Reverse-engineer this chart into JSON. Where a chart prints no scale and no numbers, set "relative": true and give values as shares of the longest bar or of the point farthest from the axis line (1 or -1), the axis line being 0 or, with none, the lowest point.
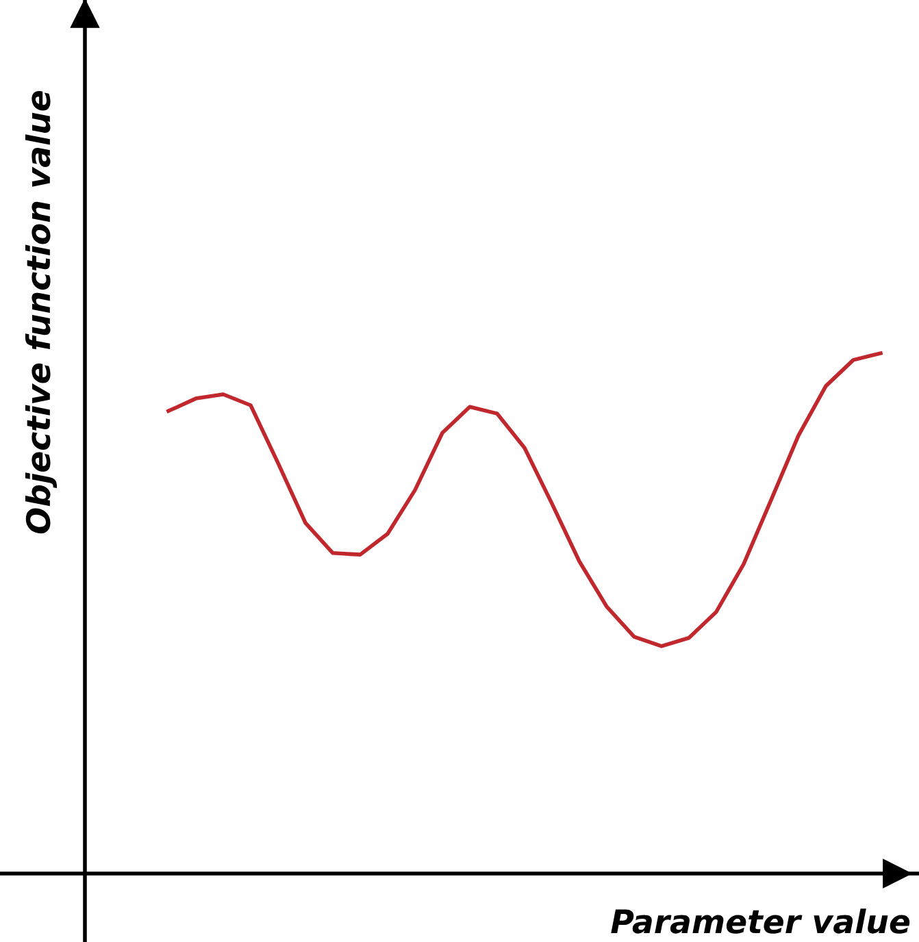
{
  "chart_data": {
    "type": "line",
    "relative": true,
    "xlabel": "Parameter value",
    "ylabel": "Objective function value",
    "categories": [
      null,
      null,
      null,
      null,
      null,
      null,
      null,
      null,
      null,
      null,
      null,
      null,
      null,
      null,
      null,
      null,
      null,
      null,
      null,
      null,
      null,
      null,
      null,
      null,
      null,
      null,
      null
    ],
    "series": [
      {
        "color": "#c0282d",
        "values": [
          0.889,
          0.913,
          0.921,
          0.9,
          0.789,
          0.674,
          0.616,
          0.613,
          0.653,
          0.737,
          0.847,
          0.897,
          0.884,
          0.818,
          0.711,
          0.6,
          0.513,
          0.455,
          0.437,
          0.453,
          0.503,
          0.595,
          0.718,
          0.842,
          0.937,
          0.987,
          1.0
        ]
      }
    ],
    "legend": false,
    "marker": "none",
    "line_style": "solid"
  }
}
